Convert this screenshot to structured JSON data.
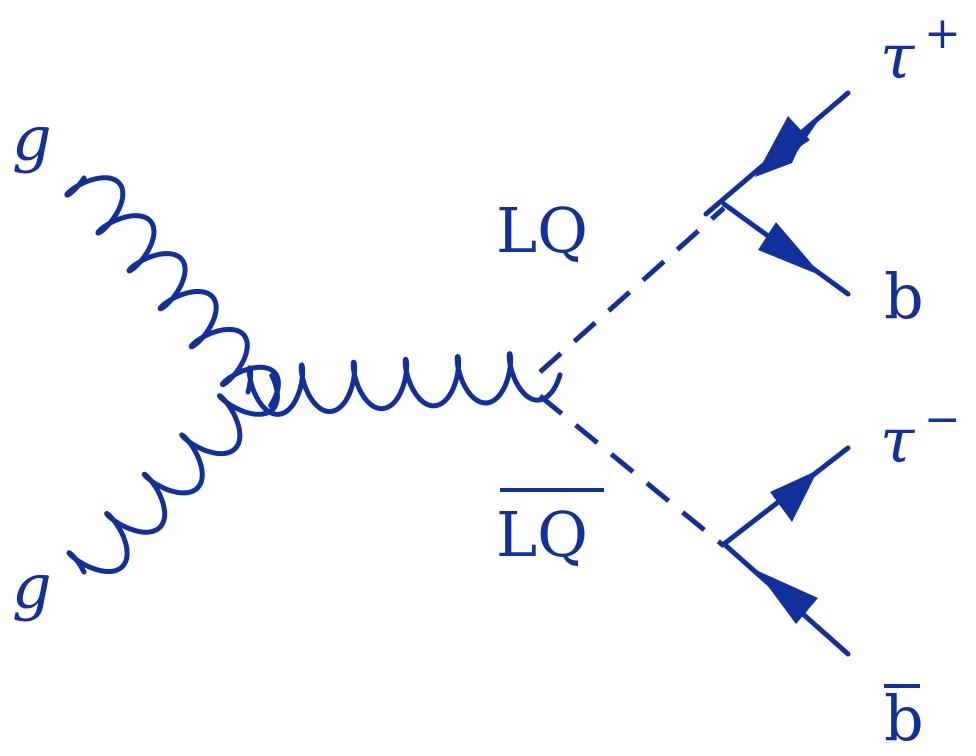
{
  "colors": {
    "ink": "#12309b"
  },
  "labels": {
    "gluon_top": "g",
    "gluon_bottom": "g",
    "lq": "LQ",
    "lq_bar": "LQ",
    "tau_plus": "τ",
    "tau_plus_sign": "+",
    "b": "b",
    "tau_minus": "τ",
    "tau_minus_sign": "−",
    "b_bar": "b"
  }
}
